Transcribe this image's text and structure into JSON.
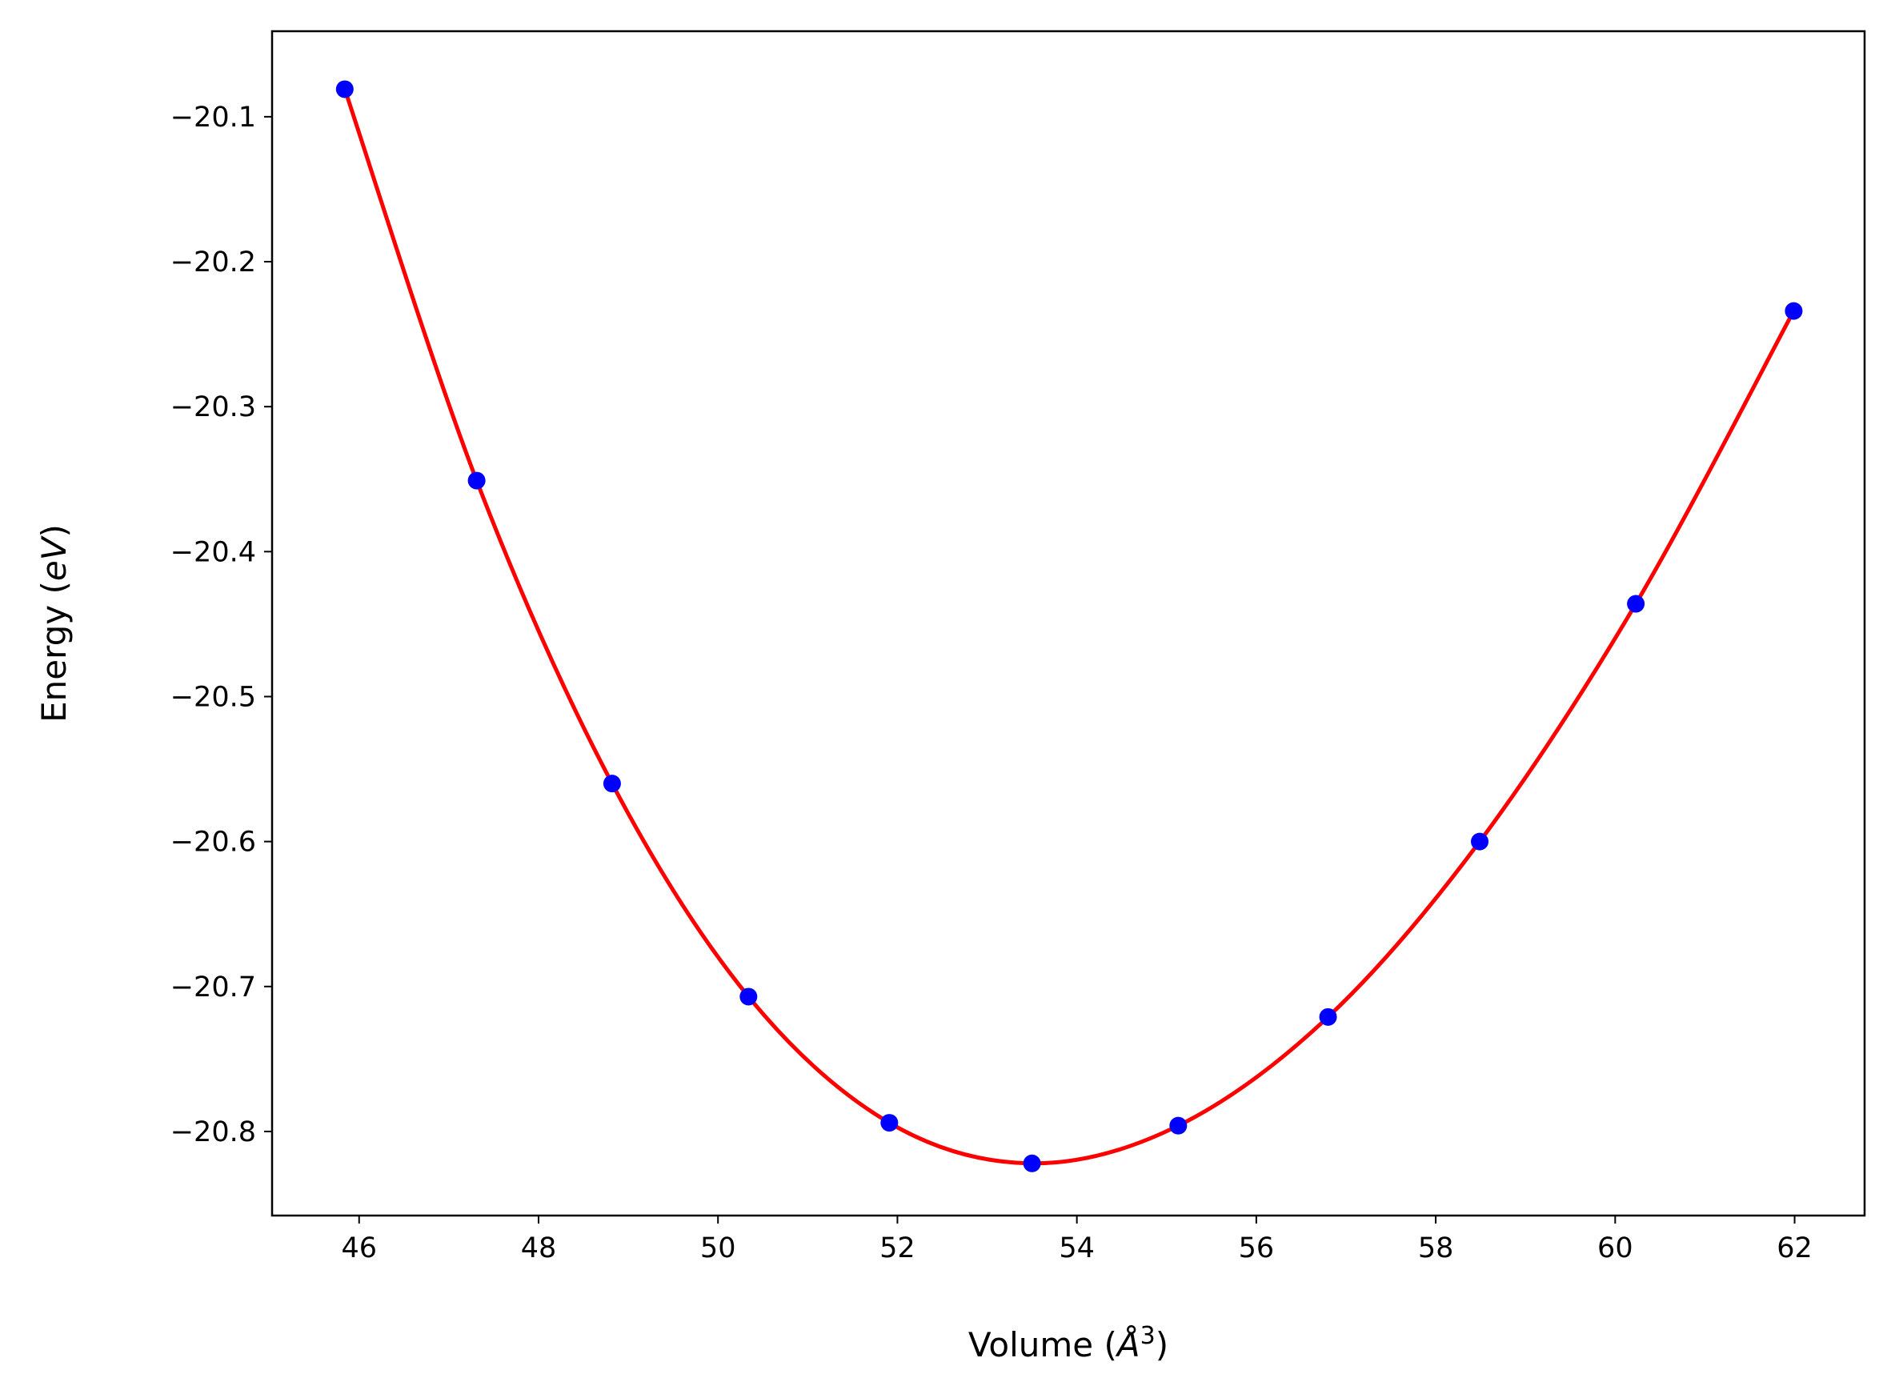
{
  "chart_data": {
    "type": "scatter",
    "title": "",
    "xlabel": "Volume (Å³)",
    "ylabel": "Energy (eV)",
    "xlabel_parts": {
      "pre": "Volume (",
      "unit": "Å",
      "sup": "3",
      "post": ")"
    },
    "ylabel_parts": {
      "pre": "Energy (",
      "unit": "eV",
      "post": ")"
    },
    "xlim": [
      45.03,
      62.78
    ],
    "ylim": [
      -20.858,
      -20.041
    ],
    "xticks": [
      46,
      48,
      50,
      52,
      54,
      56,
      58,
      60,
      62
    ],
    "yticks": [
      -20.1,
      -20.2,
      -20.3,
      -20.4,
      -20.5,
      -20.6,
      -20.7,
      -20.8
    ],
    "grid": false,
    "series": [
      {
        "kind": "points",
        "color": "#0000ff",
        "x": [
          45.84,
          47.31,
          48.82,
          50.34,
          51.91,
          53.5,
          55.13,
          56.8,
          58.49,
          60.23,
          61.99
        ],
        "y": [
          -20.081,
          -20.351,
          -20.56,
          -20.707,
          -20.794,
          -20.822,
          -20.796,
          -20.721,
          -20.6,
          -20.436,
          -20.234
        ]
      },
      {
        "kind": "fit-curve",
        "color": "#ff0000"
      }
    ]
  }
}
